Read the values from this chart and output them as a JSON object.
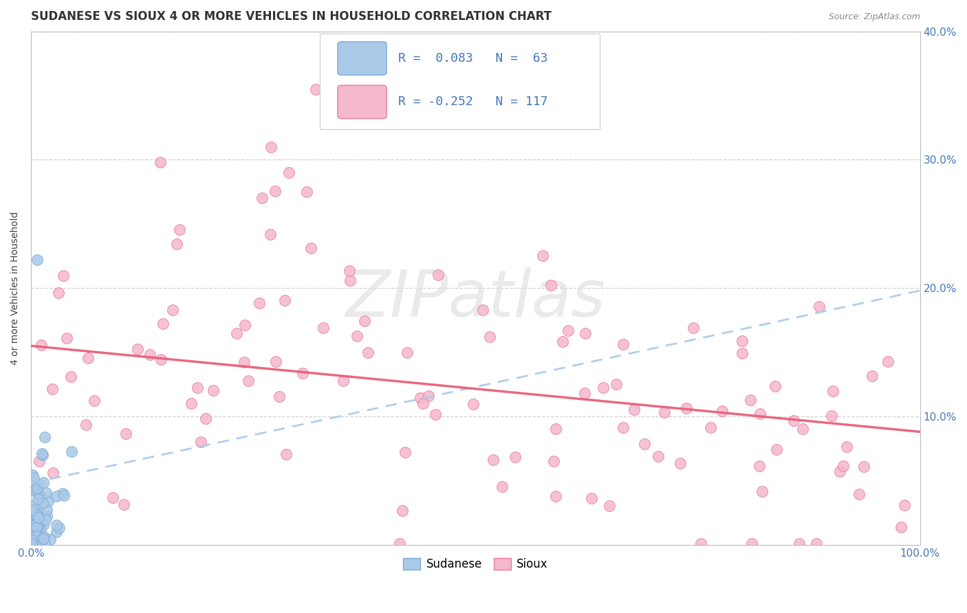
{
  "title": "SUDANESE VS SIOUX 4 OR MORE VEHICLES IN HOUSEHOLD CORRELATION CHART",
  "source_text": "Source: ZipAtlas.com",
  "ylabel": "4 or more Vehicles in Household",
  "xlim": [
    0,
    1.0
  ],
  "ylim": [
    0,
    0.4
  ],
  "background_color": "#ffffff",
  "plot_bg_color": "#ffffff",
  "grid_color": "#cccccc",
  "sudanese_color": "#aac8e8",
  "sioux_color": "#f5b8cc",
  "sudanese_edge_color": "#7aadd4",
  "sioux_edge_color": "#e87aa0",
  "sudanese_trend_color": "#aaccee",
  "sioux_trend_color": "#e8607a",
  "legend_line1": "R =  0.083   N =  63",
  "legend_line2": "R = -0.252   N = 117",
  "watermark": "ZIPatlas",
  "title_fontsize": 12,
  "axis_label_fontsize": 10,
  "tick_fontsize": 11,
  "legend_fontsize": 13,
  "sudanese_trend_start_y": 0.048,
  "sudanese_trend_end_y": 0.198,
  "sioux_trend_start_y": 0.155,
  "sioux_trend_end_y": 0.088
}
